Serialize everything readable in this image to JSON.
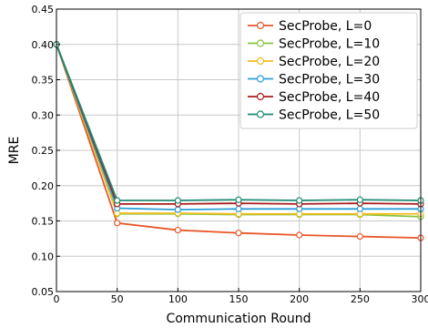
{
  "chart_data": {
    "type": "line",
    "title": "",
    "xlabel": "Communication Round",
    "ylabel": "MRE",
    "x": [
      0,
      50,
      100,
      150,
      200,
      250,
      300
    ],
    "xlim": [
      0,
      300
    ],
    "ylim": [
      0.05,
      0.45
    ],
    "xticks": [
      "0",
      "50",
      "100",
      "150",
      "200",
      "250",
      "300"
    ],
    "yticks": [
      "0.05",
      "0.10",
      "0.15",
      "0.20",
      "0.25",
      "0.30",
      "0.35",
      "0.40",
      "0.45"
    ],
    "grid": true,
    "legend_position": "top-right",
    "series": [
      {
        "name": "SecProbe, L=0",
        "color": "#e8572a",
        "values": [
          0.4,
          0.147,
          0.137,
          0.133,
          0.13,
          0.128,
          0.126
        ]
      },
      {
        "name": "SecProbe, L=10",
        "color": "#86c440",
        "values": [
          0.4,
          0.16,
          0.16,
          0.159,
          0.159,
          0.159,
          0.156
        ]
      },
      {
        "name": "SecProbe, L=20",
        "color": "#f2bd1c",
        "values": [
          0.4,
          0.161,
          0.161,
          0.16,
          0.16,
          0.16,
          0.16
        ]
      },
      {
        "name": "SecProbe, L=30",
        "color": "#2b9fd9",
        "values": [
          0.4,
          0.168,
          0.166,
          0.167,
          0.167,
          0.167,
          0.167
        ]
      },
      {
        "name": "SecProbe, L=40",
        "color": "#a81d1d",
        "values": [
          0.4,
          0.174,
          0.174,
          0.175,
          0.174,
          0.175,
          0.174
        ]
      },
      {
        "name": "SecProbe, L=50",
        "color": "#1f8a72",
        "values": [
          0.4,
          0.179,
          0.179,
          0.18,
          0.179,
          0.18,
          0.179
        ]
      }
    ]
  }
}
